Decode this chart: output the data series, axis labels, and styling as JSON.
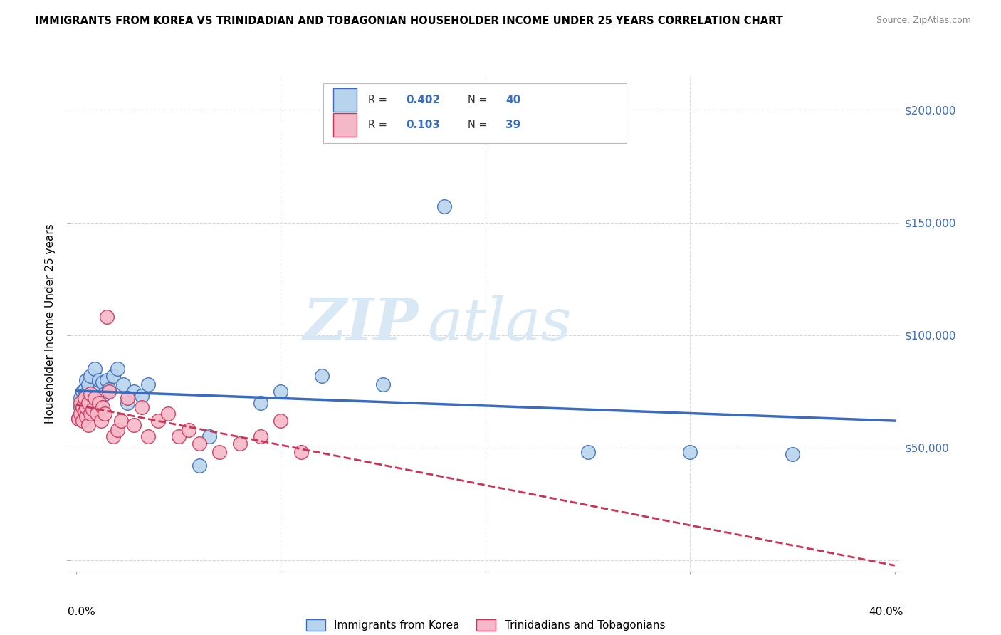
{
  "title": "IMMIGRANTS FROM KOREA VS TRINIDADIAN AND TOBAGONIAN HOUSEHOLDER INCOME UNDER 25 YEARS CORRELATION CHART",
  "source": "Source: ZipAtlas.com",
  "ylabel": "Householder Income Under 25 years",
  "legend_label1": "Immigrants from Korea",
  "legend_label2": "Trinidadians and Tobagonians",
  "r1": 0.402,
  "n1": 40,
  "r2": 0.103,
  "n2": 39,
  "yticks": [
    0,
    50000,
    100000,
    150000,
    200000
  ],
  "ytick_labels": [
    "",
    "$50,000",
    "$100,000",
    "$150,000",
    "$200,000"
  ],
  "color_korea": "#b8d4ed",
  "color_tnt": "#f5b8c8",
  "color_korea_line": "#3a6bbf",
  "color_tnt_line": "#cc3355",
  "korea_x": [
    0.001,
    0.002,
    0.002,
    0.003,
    0.003,
    0.004,
    0.004,
    0.005,
    0.005,
    0.006,
    0.006,
    0.007,
    0.007,
    0.008,
    0.009,
    0.01,
    0.01,
    0.011,
    0.012,
    0.013,
    0.014,
    0.015,
    0.016,
    0.018,
    0.02,
    0.023,
    0.025,
    0.028,
    0.032,
    0.035,
    0.06,
    0.065,
    0.09,
    0.1,
    0.12,
    0.15,
    0.18,
    0.25,
    0.3,
    0.35
  ],
  "korea_y": [
    63000,
    68000,
    72000,
    70000,
    75000,
    68000,
    76000,
    74000,
    80000,
    72000,
    78000,
    65000,
    82000,
    70000,
    85000,
    68000,
    75000,
    80000,
    72000,
    79000,
    74000,
    80000,
    76000,
    82000,
    85000,
    78000,
    70000,
    75000,
    73000,
    78000,
    42000,
    55000,
    70000,
    75000,
    82000,
    78000,
    157000,
    48000,
    48000,
    47000
  ],
  "tnt_x": [
    0.001,
    0.002,
    0.002,
    0.003,
    0.003,
    0.004,
    0.004,
    0.005,
    0.005,
    0.006,
    0.006,
    0.007,
    0.007,
    0.008,
    0.009,
    0.01,
    0.011,
    0.012,
    0.013,
    0.014,
    0.015,
    0.016,
    0.018,
    0.02,
    0.022,
    0.025,
    0.028,
    0.032,
    0.035,
    0.04,
    0.045,
    0.05,
    0.055,
    0.06,
    0.07,
    0.08,
    0.09,
    0.1,
    0.11
  ],
  "tnt_y": [
    63000,
    65000,
    70000,
    62000,
    68000,
    66000,
    72000,
    64000,
    68000,
    70000,
    60000,
    65000,
    74000,
    67000,
    72000,
    65000,
    70000,
    62000,
    68000,
    65000,
    108000,
    75000,
    55000,
    58000,
    62000,
    72000,
    60000,
    68000,
    55000,
    62000,
    65000,
    55000,
    58000,
    52000,
    48000,
    52000,
    55000,
    62000,
    48000
  ],
  "watermark_zip": "ZIP",
  "watermark_atlas": "atlas",
  "background_color": "#ffffff",
  "plot_bg": "#ffffff",
  "grid_color": "#cccccc"
}
